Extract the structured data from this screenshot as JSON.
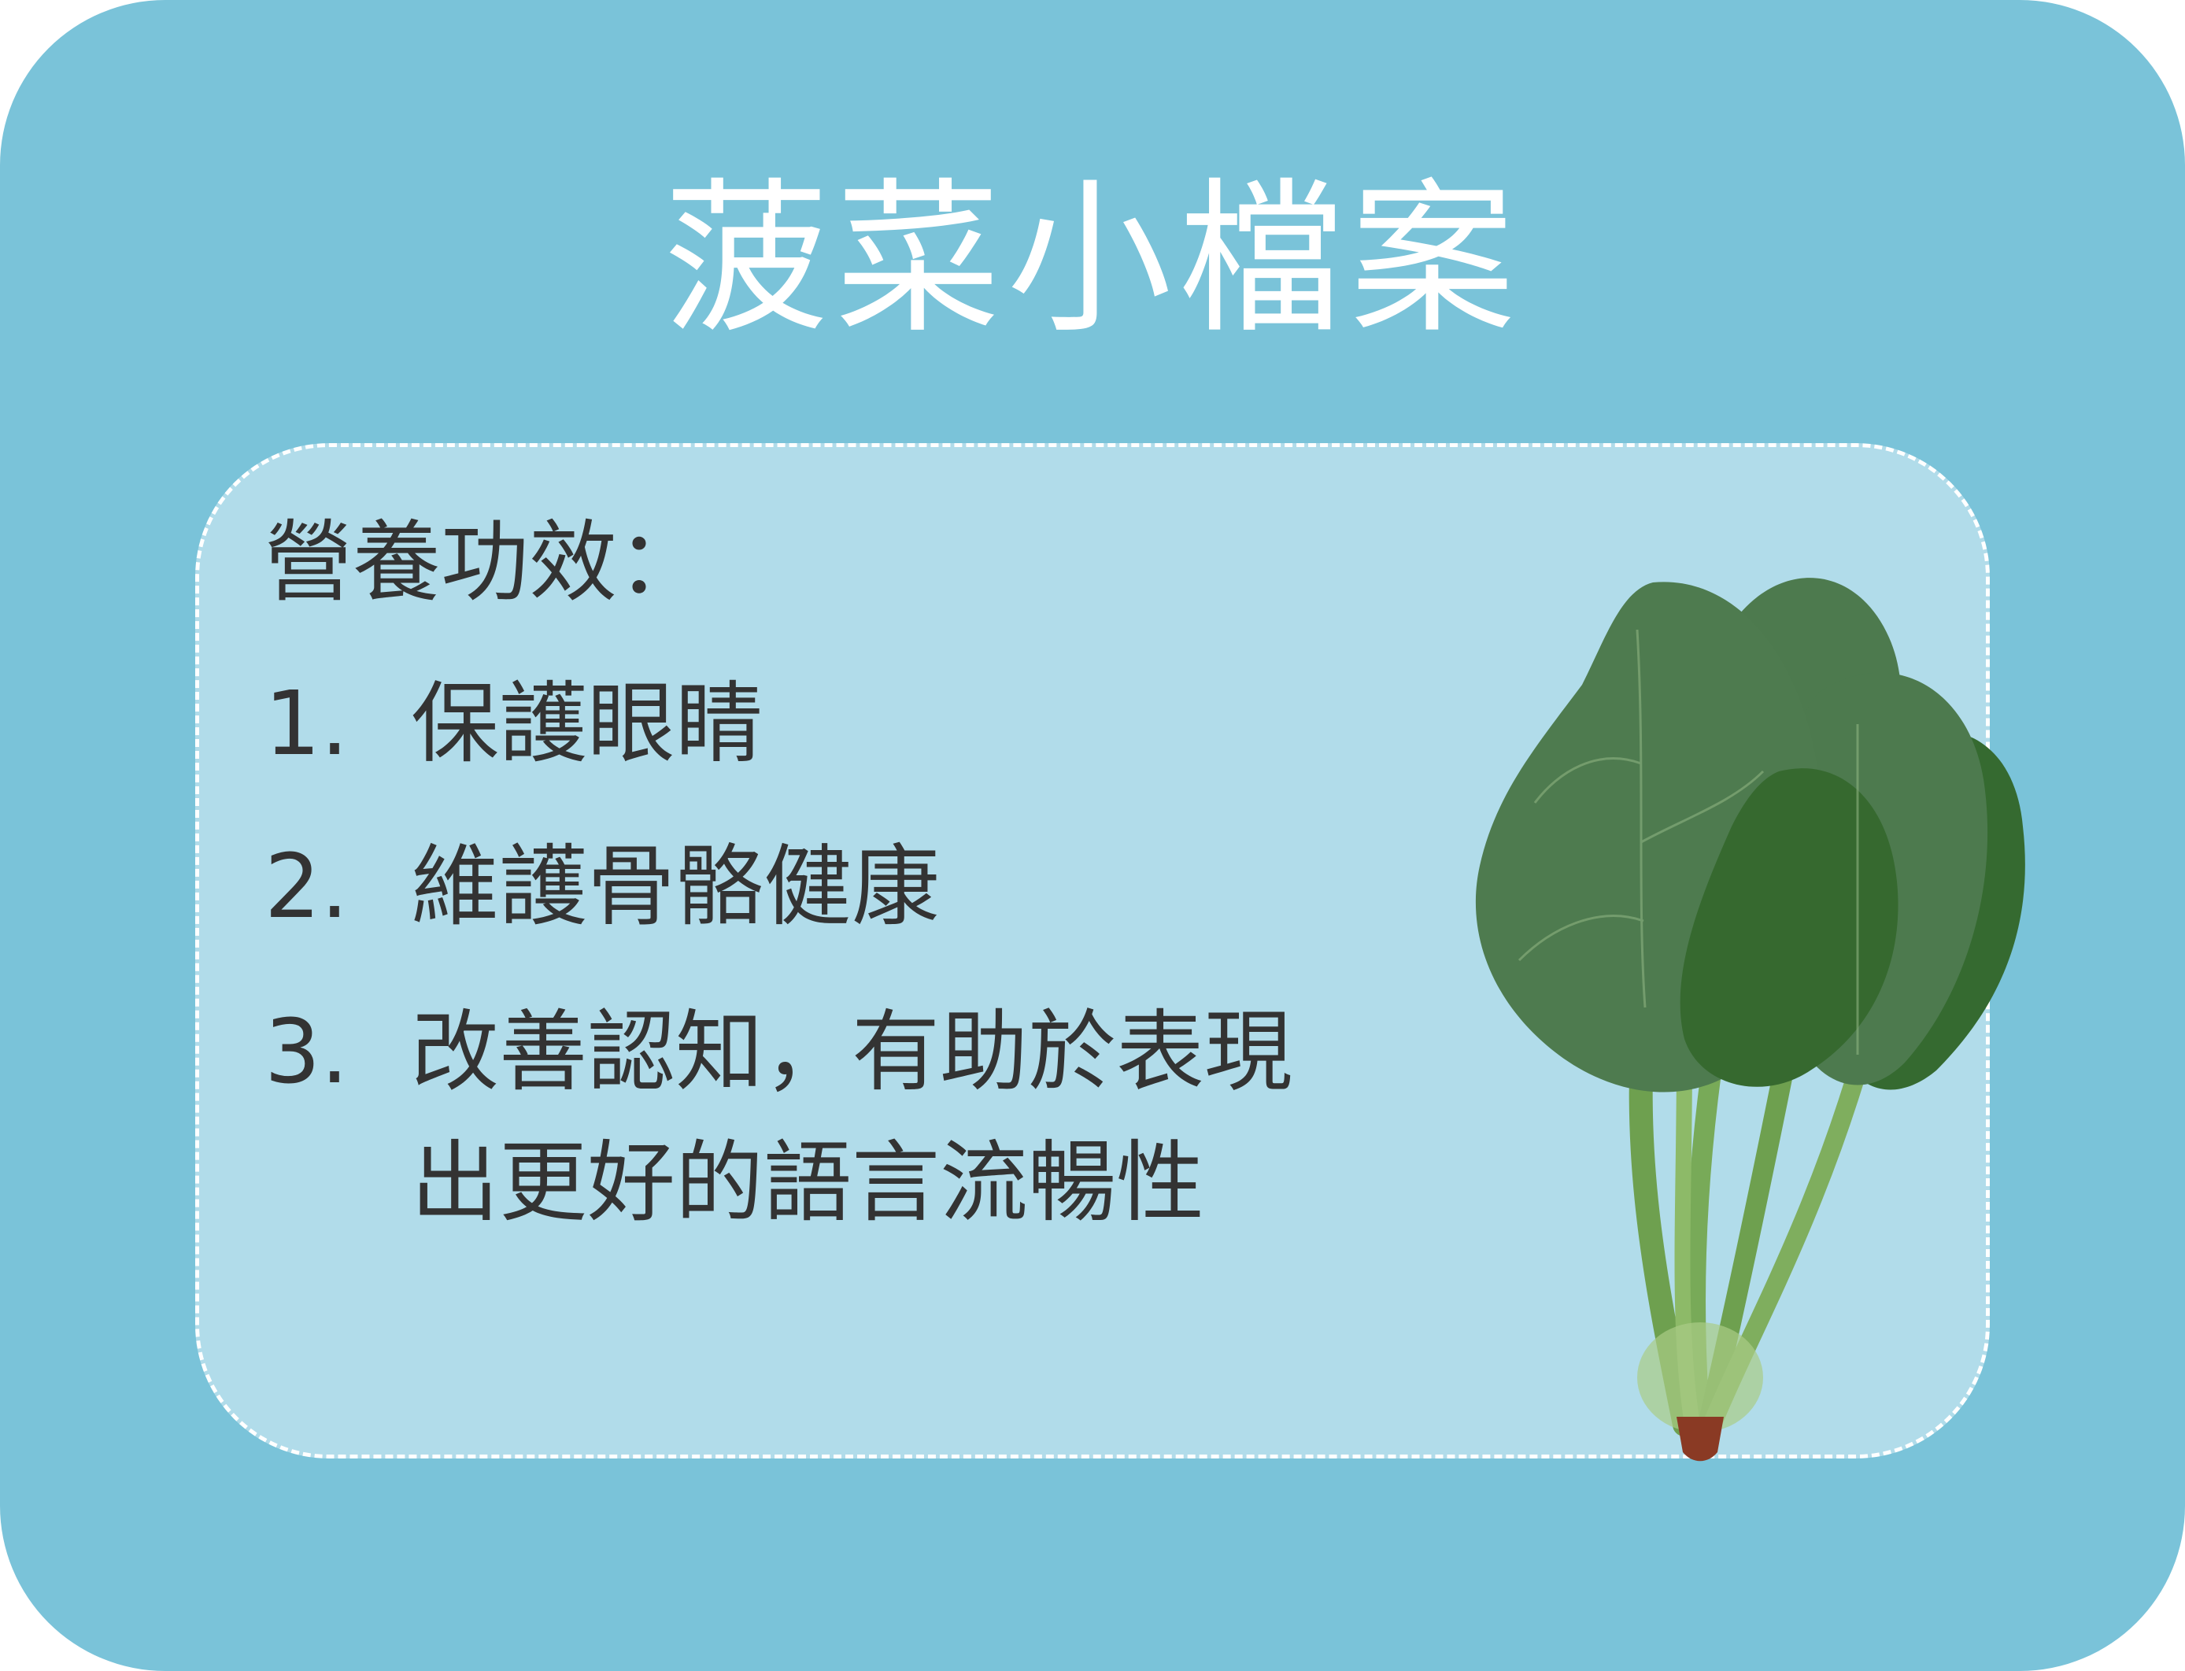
{
  "title": "菠菜小檔案",
  "section_heading": "營養功效：",
  "benefits": [
    {
      "number": "1.",
      "text": "保護眼睛"
    },
    {
      "number": "2.",
      "text": "維護骨骼健康"
    },
    {
      "number": "3.",
      "text_line1": "改善認知，有助於表現",
      "text_line2": "出更好的語言流暢性"
    }
  ],
  "colors": {
    "background": "#7ac3d9",
    "panel": "#b1dcea",
    "title_text": "#ffffff",
    "body_text": "#333333",
    "leaf_dark": "#356a30",
    "leaf_mid": "#4d7a4e",
    "stem": "#6ea04f",
    "root": "#8a3a24"
  },
  "illustration": "spinach-bunch"
}
